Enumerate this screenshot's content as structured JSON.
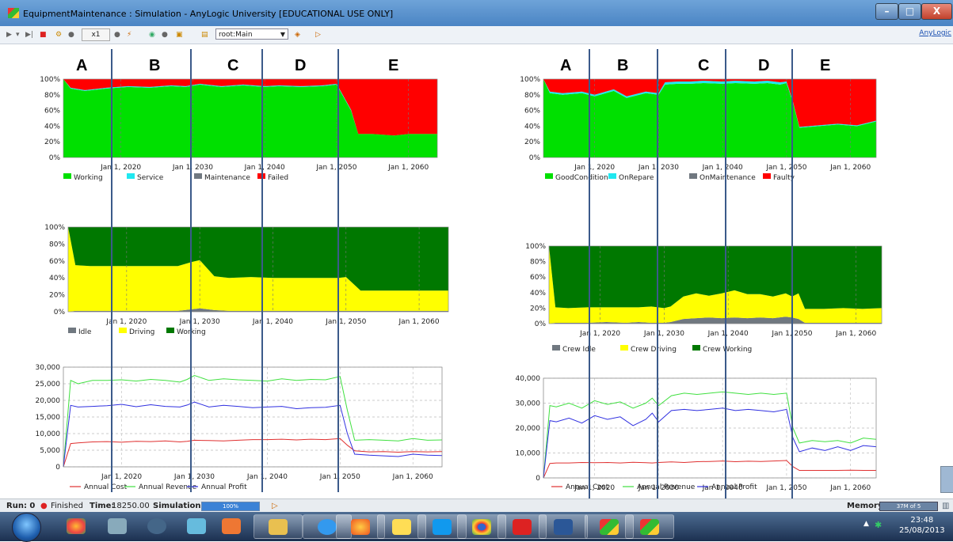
{
  "window": {
    "title": "EquipmentMaintenance : Simulation - AnyLogic University  [EDUCATIONAL USE ONLY]",
    "controls": {
      "minimize": "–",
      "maximize": "□",
      "close": "X"
    }
  },
  "toolbar": {
    "speed": "x1",
    "root_select": "root:Main",
    "anylogic_link": "AnyLogic"
  },
  "zones": [
    "A",
    "B",
    "C",
    "D",
    "E"
  ],
  "colors": {
    "working": "#00e000",
    "service": "#20e8f0",
    "maintenance": "#707880",
    "failed": "#ff0000",
    "driving": "#ffff00",
    "crew_working": "#007800",
    "cost": "#e03030",
    "revenue": "#40e040",
    "profit": "#3030e0"
  },
  "status": {
    "run": "Run: 0",
    "state": "Finished",
    "time_label": "Time:",
    "time_value": "18250.00",
    "sim_label": "Simulation:",
    "sim_progress": "100%",
    "memory_label": "Memory:",
    "memory_value": "37M of 5"
  },
  "taskbar": {
    "time": "23:48",
    "date": "25/08/2013"
  },
  "chart_data": [
    {
      "type": "area",
      "stacked": true,
      "x": [
        2012,
        2013,
        2015,
        2018,
        2021,
        2024,
        2027,
        2029,
        2031,
        2034,
        2037,
        2040,
        2042,
        2045,
        2048,
        2050,
        2052,
        2053,
        2055,
        2058,
        2060,
        2062,
        2064
      ],
      "series": [
        {
          "name": "Working",
          "color": "#00e000",
          "values": [
            100,
            88,
            85,
            88,
            90,
            89,
            91,
            90,
            93,
            90,
            92,
            90,
            91,
            90,
            91,
            93,
            60,
            30,
            30,
            28,
            30,
            30,
            30
          ]
        },
        {
          "name": "Service",
          "color": "#20e8f0",
          "values": [
            0,
            1,
            1,
            1,
            1,
            1,
            1,
            1,
            1,
            1,
            1,
            1,
            1,
            1,
            1,
            1,
            1,
            0,
            0,
            0,
            0,
            0,
            0
          ]
        },
        {
          "name": "Maintenance",
          "color": "#707880",
          "values": [
            0,
            0,
            0,
            0,
            0,
            0,
            0,
            0,
            0,
            0,
            0,
            0,
            0,
            0,
            0,
            0,
            0,
            0,
            0,
            0,
            0,
            0,
            0
          ]
        },
        {
          "name": "Failed",
          "color": "#ff0000",
          "values": [
            0,
            11,
            14,
            11,
            9,
            10,
            8,
            9,
            6,
            9,
            7,
            9,
            8,
            9,
            8,
            6,
            39,
            70,
            70,
            72,
            70,
            70,
            70
          ]
        }
      ],
      "yticks": [
        "0%",
        "20%",
        "40%",
        "60%",
        "80%",
        "100%"
      ],
      "xticks": [
        "Jan 1, 2020",
        "Jan 1, 2030",
        "Jan 1, 2040",
        "Jan 1, 2050",
        "Jan 1, 2060"
      ],
      "ylim": [
        0,
        100
      ],
      "xlim": [
        2012,
        2064
      ]
    },
    {
      "type": "area",
      "stacked": true,
      "x": [
        2012,
        2013,
        2015,
        2018,
        2021,
        2024,
        2027,
        2029,
        2030,
        2032,
        2034,
        2037,
        2040,
        2043,
        2046,
        2049,
        2050,
        2052,
        2055,
        2058,
        2061,
        2064
      ],
      "series": [
        {
          "name": "Idle",
          "color": "#707880",
          "values": [
            0,
            1,
            1,
            1,
            1,
            1,
            1,
            3,
            4,
            2,
            1,
            1,
            1,
            1,
            1,
            1,
            1,
            1,
            1,
            1,
            1,
            1
          ]
        },
        {
          "name": "Driving",
          "color": "#ffff00",
          "values": [
            100,
            54,
            53,
            53,
            53,
            53,
            53,
            56,
            57,
            40,
            39,
            40,
            39,
            39,
            39,
            39,
            40,
            24,
            24,
            24,
            24,
            24
          ]
        },
        {
          "name": "Working",
          "color": "#007800",
          "values": [
            0,
            45,
            46,
            46,
            46,
            46,
            46,
            41,
            39,
            58,
            60,
            59,
            60,
            60,
            60,
            60,
            59,
            75,
            75,
            75,
            75,
            75
          ]
        }
      ],
      "yticks": [
        "0%",
        "20%",
        "40%",
        "60%",
        "80%",
        "100%"
      ],
      "xticks": [
        "Jan 1, 2020",
        "Jan 1, 2030",
        "Jan 1, 2040",
        "Jan 1, 2050",
        "Jan 1, 2060"
      ],
      "ylim": [
        0,
        100
      ],
      "xlim": [
        2012,
        2064
      ]
    },
    {
      "type": "line",
      "x": [
        2012,
        2013,
        2014,
        2016,
        2018,
        2020,
        2022,
        2024,
        2026,
        2028,
        2029,
        2030,
        2032,
        2034,
        2036,
        2038,
        2040,
        2042,
        2044,
        2046,
        2048,
        2050,
        2051,
        2052,
        2054,
        2056,
        2058,
        2060,
        2062,
        2064
      ],
      "series": [
        {
          "name": "Annual Cost",
          "color": "#e03030",
          "values": [
            0,
            7000,
            7200,
            7500,
            7600,
            7400,
            7700,
            7600,
            7800,
            7500,
            7700,
            8000,
            7900,
            7800,
            8000,
            8200,
            8200,
            8300,
            8100,
            8300,
            8200,
            8500,
            6500,
            4800,
            4500,
            4600,
            4400,
            4600,
            4500,
            4600
          ]
        },
        {
          "name": "Annual Revenue",
          "color": "#40e040",
          "values": [
            0,
            26000,
            25000,
            26000,
            26000,
            26200,
            25800,
            26300,
            26000,
            25500,
            26300,
            27500,
            26000,
            26500,
            26200,
            26000,
            25800,
            26500,
            26000,
            26300,
            26200,
            27200,
            17000,
            8000,
            8200,
            8000,
            7800,
            8500,
            8000,
            8100
          ]
        },
        {
          "name": "Annual Profit",
          "color": "#3030e0",
          "values": [
            0,
            18500,
            18000,
            18200,
            18400,
            18800,
            18100,
            18700,
            18200,
            18000,
            18600,
            19500,
            18000,
            18500,
            18200,
            17800,
            18000,
            18200,
            17500,
            17800,
            17900,
            18500,
            10000,
            3800,
            3500,
            3300,
            3100,
            3800,
            3500,
            3400
          ]
        }
      ],
      "yticks": [
        "0",
        "5,000",
        "10,000",
        "15,000",
        "20,000",
        "25,000",
        "30,000"
      ],
      "xticks": [
        "Jan 1, 2020",
        "Jan 1, 2030",
        "Jan 1, 2040",
        "Jan 1, 2050",
        "Jan 1, 2060"
      ],
      "ylim": [
        0,
        30000
      ],
      "xlim": [
        2012,
        2064
      ]
    },
    {
      "type": "area",
      "stacked": true,
      "x": [
        2012,
        2013,
        2015,
        2018,
        2020,
        2023,
        2025,
        2026,
        2028,
        2030,
        2031,
        2033,
        2035,
        2037,
        2040,
        2042,
        2045,
        2047,
        2049,
        2050,
        2051,
        2052,
        2055,
        2058,
        2061,
        2064
      ],
      "series": [
        {
          "name": "GoodCondition",
          "color": "#00e000",
          "values": [
            100,
            82,
            80,
            82,
            78,
            85,
            76,
            78,
            82,
            80,
            93,
            94,
            94,
            95,
            94,
            95,
            94,
            95,
            93,
            95,
            70,
            38,
            40,
            42,
            40,
            46
          ]
        },
        {
          "name": "OnRepare",
          "color": "#20e8f0",
          "values": [
            0,
            2,
            2,
            2,
            2,
            2,
            2,
            2,
            2,
            2,
            3,
            3,
            3,
            3,
            3,
            3,
            3,
            3,
            3,
            2,
            1,
            1,
            1,
            1,
            1,
            1
          ]
        },
        {
          "name": "OnMaintenance",
          "color": "#707880",
          "values": [
            0,
            0,
            0,
            0,
            0,
            0,
            0,
            0,
            0,
            0,
            0,
            0,
            0,
            0,
            0,
            0,
            0,
            0,
            0,
            0,
            0,
            0,
            0,
            0,
            0,
            0
          ]
        },
        {
          "name": "Faulty",
          "color": "#ff0000",
          "values": [
            0,
            16,
            18,
            16,
            20,
            13,
            22,
            20,
            16,
            18,
            4,
            3,
            3,
            2,
            3,
            2,
            3,
            2,
            4,
            3,
            29,
            61,
            59,
            57,
            59,
            53
          ]
        }
      ],
      "yticks": [
        "0%",
        "20%",
        "40%",
        "60%",
        "80%",
        "100%"
      ],
      "xticks": [
        "Jan 1, 2020",
        "Jan 1, 2030",
        "Jan 1, 2040",
        "Jan 1, 2050",
        "Jan 1, 2060"
      ],
      "ylim": [
        0,
        100
      ],
      "xlim": [
        2012,
        2064
      ]
    },
    {
      "type": "area",
      "stacked": true,
      "x": [
        2012,
        2013,
        2015,
        2018,
        2021,
        2024,
        2026,
        2028,
        2030,
        2031,
        2033,
        2035,
        2037,
        2039,
        2041,
        2043,
        2045,
        2047,
        2049,
        2050,
        2051,
        2052,
        2055,
        2058,
        2061,
        2064
      ],
      "series": [
        {
          "name": "Crew Idle",
          "color": "#707880",
          "values": [
            0,
            1,
            1,
            1,
            2,
            1,
            2,
            1,
            1,
            2,
            6,
            7,
            8,
            7,
            8,
            7,
            8,
            7,
            9,
            8,
            6,
            1,
            1,
            1,
            1,
            1
          ]
        },
        {
          "name": "Crew Driving",
          "color": "#ffff00",
          "values": [
            100,
            20,
            19,
            20,
            19,
            20,
            19,
            21,
            19,
            20,
            29,
            32,
            28,
            32,
            35,
            31,
            30,
            28,
            30,
            27,
            33,
            18,
            18,
            19,
            18,
            19
          ]
        },
        {
          "name": "Crew Working",
          "color": "#007800",
          "values": [
            0,
            79,
            80,
            79,
            79,
            79,
            79,
            78,
            80,
            78,
            65,
            61,
            64,
            61,
            57,
            62,
            62,
            65,
            61,
            65,
            61,
            81,
            81,
            80,
            81,
            80
          ]
        }
      ],
      "yticks": [
        "0%",
        "20%",
        "40%",
        "60%",
        "80%",
        "100%"
      ],
      "xticks": [
        "Jan 1, 2020",
        "Jan 1, 2030",
        "Jan 1, 2040",
        "Jan 1, 2050",
        "Jan 1, 2060"
      ],
      "ylim": [
        0,
        100
      ],
      "xlim": [
        2012,
        2064
      ]
    },
    {
      "type": "line",
      "x": [
        2012,
        2013,
        2014,
        2016,
        2018,
        2020,
        2022,
        2024,
        2026,
        2028,
        2029,
        2030,
        2032,
        2034,
        2036,
        2038,
        2040,
        2042,
        2044,
        2046,
        2048,
        2050,
        2051,
        2052,
        2054,
        2056,
        2058,
        2060,
        2062,
        2064
      ],
      "series": [
        {
          "name": "Annual Cost",
          "color": "#e03030",
          "values": [
            0,
            5800,
            6000,
            6000,
            6200,
            6100,
            6200,
            6000,
            6300,
            6100,
            6000,
            6200,
            6400,
            6200,
            6500,
            6600,
            6800,
            6500,
            6700,
            6600,
            6800,
            7000,
            4500,
            3000,
            3000,
            3000,
            3000,
            3100,
            3000,
            3000
          ]
        },
        {
          "name": "Annual Revenue",
          "color": "#40e040",
          "values": [
            0,
            29000,
            28500,
            30000,
            28000,
            31000,
            29500,
            30500,
            28000,
            30000,
            32000,
            29000,
            33000,
            34000,
            33500,
            34000,
            34500,
            34000,
            33500,
            34000,
            33500,
            34000,
            20000,
            14000,
            15000,
            14500,
            15000,
            14000,
            16000,
            15500
          ]
        },
        {
          "name": "Annual Profit",
          "color": "#3030e0",
          "values": [
            0,
            23000,
            22500,
            24000,
            22000,
            25000,
            23500,
            24500,
            21000,
            23500,
            26000,
            22500,
            27000,
            27500,
            27000,
            27500,
            28000,
            27000,
            27500,
            27000,
            26500,
            27500,
            16000,
            10500,
            12000,
            11000,
            12500,
            11000,
            13000,
            12500
          ]
        }
      ],
      "yticks": [
        "0",
        "10,000",
        "20,000",
        "30,000",
        "40,000"
      ],
      "xticks": [
        "Jan 1, 2020",
        "Jan 1, 2030",
        "Jan 1, 2040",
        "Jan 1, 2050",
        "Jan 1, 2060"
      ],
      "ylim": [
        0,
        40000
      ],
      "xlim": [
        2012,
        2064
      ]
    }
  ]
}
